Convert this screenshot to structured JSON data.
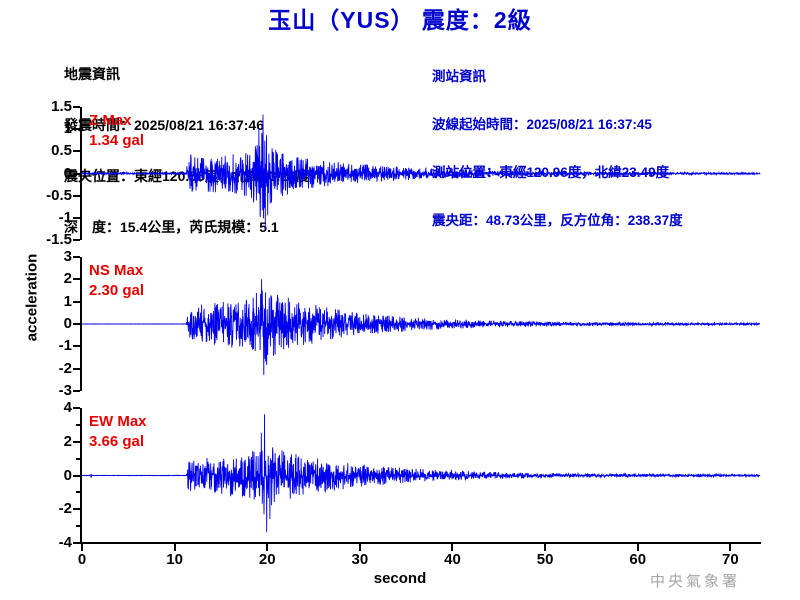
{
  "header": {
    "title": "玉山（YUS） 震度：2級"
  },
  "quake_info": {
    "lines": [
      "地震資訊",
      "發震時間：2025/08/21 16:37:46",
      "震央位置：東經120.55度，北緯23.26度",
      "深　度：15.4公里，芮氏規模：5.1"
    ]
  },
  "station_info": {
    "lines": [
      "測站資訊",
      "波線起始時間：2025/08/21 16:37:45",
      "測站位置：東經120.96度，北緯23.49度",
      "震央距：48.73公里，反方位角：238.37度"
    ]
  },
  "watermark": "中央氣象署",
  "colors": {
    "title_blue": "#0000cc",
    "info_blue": "#0000cc",
    "label_red": "#e80000",
    "trace_blue": "#0000ee",
    "watermark_gray": "#a6a6a6",
    "axis_black": "#000000"
  },
  "chart_data": {
    "type": "line",
    "title": "玉山（YUS） 震度：2級",
    "xlabel": "second",
    "ylabel": "acceleration",
    "x_range": [
      0,
      73.2
    ],
    "x_ticks": [
      0,
      10,
      20,
      30,
      40,
      50,
      60,
      70
    ],
    "grid": false,
    "trace_color": "#0000ee",
    "panels": [
      {
        "id": "Z",
        "label": "Z Max",
        "max_label": "1.34 gal",
        "max_gal": 1.34,
        "ylim": [
          -1.5,
          1.5
        ],
        "yticks": [
          1.5,
          1,
          0.5,
          0,
          -0.5,
          -1,
          -1.5
        ],
        "ytick_labels": [
          "1.5",
          "1",
          "0.5",
          "0",
          "-0.5",
          "-1",
          "-1.5"
        ],
        "yticks_minor": [],
        "p_arrival_s": 11.4,
        "peak_time_s": 19.55,
        "envelope": [
          [
            0,
            0.02
          ],
          [
            1.5,
            0.03
          ],
          [
            3,
            0.02
          ],
          [
            4.5,
            0.03
          ],
          [
            6,
            0.02
          ],
          [
            7.5,
            0.03
          ],
          [
            9,
            0.02
          ],
          [
            10.5,
            0.025
          ],
          [
            11.25,
            0.025
          ],
          [
            11.45,
            0.5
          ],
          [
            12,
            0.42
          ],
          [
            13,
            0.38
          ],
          [
            14,
            0.45
          ],
          [
            15,
            0.4
          ],
          [
            16,
            0.42
          ],
          [
            17,
            0.5
          ],
          [
            18,
            0.55
          ],
          [
            18.8,
            0.75
          ],
          [
            19.3,
            1.05
          ],
          [
            19.7,
            1.15
          ],
          [
            20.2,
            0.8
          ],
          [
            21,
            0.55
          ],
          [
            22,
            0.5
          ],
          [
            23,
            0.42
          ],
          [
            24,
            0.38
          ],
          [
            25,
            0.33
          ],
          [
            26,
            0.3
          ],
          [
            27,
            0.28
          ],
          [
            28,
            0.26
          ],
          [
            30,
            0.22
          ],
          [
            32,
            0.19
          ],
          [
            34,
            0.16
          ],
          [
            36,
            0.14
          ],
          [
            38,
            0.12
          ],
          [
            40,
            0.1
          ],
          [
            43,
            0.08
          ],
          [
            46,
            0.065
          ],
          [
            50,
            0.05
          ],
          [
            55,
            0.04
          ],
          [
            60,
            0.033
          ],
          [
            65,
            0.028
          ],
          [
            70,
            0.024
          ],
          [
            73.2,
            0.022
          ]
        ],
        "peaks": [
          {
            "t": 19.55,
            "v": 1.34
          },
          {
            "t": 19.78,
            "v": -1.28
          },
          {
            "t": 19.1,
            "v": 1.02
          },
          {
            "t": 20.05,
            "v": -0.95
          }
        ]
      },
      {
        "id": "NS",
        "label": "NS Max",
        "max_label": "2.30 gal",
        "max_gal": 2.3,
        "ylim": [
          -3,
          3
        ],
        "yticks": [
          3,
          2,
          1,
          0,
          -1,
          -2,
          -3
        ],
        "ytick_labels": [
          "3",
          "2",
          "1",
          "0",
          "-1",
          "-2",
          "-3"
        ],
        "yticks_minor": [],
        "p_arrival_s": 11.4,
        "peak_time_s": 19.62,
        "envelope": [
          [
            0,
            0.006
          ],
          [
            11.25,
            0.008
          ],
          [
            11.45,
            0.7
          ],
          [
            12,
            0.75
          ],
          [
            13,
            0.9
          ],
          [
            14,
            1.1
          ],
          [
            14.5,
            0.95
          ],
          [
            15,
            1.05
          ],
          [
            16,
            1.15
          ],
          [
            17,
            1.05
          ],
          [
            18,
            1.25
          ],
          [
            18.7,
            1.5
          ],
          [
            19.3,
            1.9
          ],
          [
            19.6,
            2.1
          ],
          [
            20.1,
            1.7
          ],
          [
            21,
            1.35
          ],
          [
            22,
            1.25
          ],
          [
            23,
            1.05
          ],
          [
            24,
            0.95
          ],
          [
            25,
            0.9
          ],
          [
            26,
            0.8
          ],
          [
            27,
            0.7
          ],
          [
            28,
            0.65
          ],
          [
            29,
            0.58
          ],
          [
            30,
            0.52
          ],
          [
            32,
            0.44
          ],
          [
            34,
            0.37
          ],
          [
            36,
            0.31
          ],
          [
            38,
            0.26
          ],
          [
            40,
            0.22
          ],
          [
            43,
            0.17
          ],
          [
            46,
            0.14
          ],
          [
            50,
            0.11
          ],
          [
            55,
            0.085
          ],
          [
            60,
            0.07
          ],
          [
            65,
            0.06
          ],
          [
            70,
            0.052
          ],
          [
            73.2,
            0.048
          ]
        ],
        "peaks": [
          {
            "t": 19.62,
            "v": -2.3
          },
          {
            "t": 19.4,
            "v": 2.02
          },
          {
            "t": 19.95,
            "v": -1.85
          }
        ]
      },
      {
        "id": "EW",
        "label": "EW Max",
        "max_label": "3.66 gal",
        "max_gal": 3.66,
        "ylim": [
          -4,
          4
        ],
        "yticks": [
          4,
          2,
          0,
          -2,
          -4
        ],
        "ytick_labels": [
          "4",
          "2",
          "0",
          "-2",
          "-4"
        ],
        "yticks_minor": [
          3,
          1,
          -1,
          -3
        ],
        "p_arrival_s": 11.4,
        "peak_time_s": 19.7,
        "envelope": [
          [
            0,
            0.012
          ],
          [
            0.85,
            0.012
          ],
          [
            0.95,
            0.13
          ],
          [
            1.1,
            0.012
          ],
          [
            11.25,
            0.015
          ],
          [
            11.45,
            1.0
          ],
          [
            12,
            0.95
          ],
          [
            13,
            1.0
          ],
          [
            14,
            1.1
          ],
          [
            15,
            1.15
          ],
          [
            16,
            1.25
          ],
          [
            17,
            1.2
          ],
          [
            18,
            1.35
          ],
          [
            18.7,
            1.6
          ],
          [
            19.3,
            2.2
          ],
          [
            19.7,
            3.0
          ],
          [
            20.2,
            2.0
          ],
          [
            21,
            1.6
          ],
          [
            22,
            1.5
          ],
          [
            23,
            1.35
          ],
          [
            24,
            1.25
          ],
          [
            25,
            1.1
          ],
          [
            26,
            1.0
          ],
          [
            27,
            0.92
          ],
          [
            28,
            0.85
          ],
          [
            29,
            0.75
          ],
          [
            30,
            0.68
          ],
          [
            32,
            0.58
          ],
          [
            34,
            0.48
          ],
          [
            36,
            0.42
          ],
          [
            38,
            0.35
          ],
          [
            40,
            0.3
          ],
          [
            43,
            0.24
          ],
          [
            46,
            0.19
          ],
          [
            50,
            0.15
          ],
          [
            55,
            0.12
          ],
          [
            60,
            0.1
          ],
          [
            65,
            0.085
          ],
          [
            70,
            0.075
          ],
          [
            73.2,
            0.065
          ]
        ],
        "peaks": [
          {
            "t": 19.7,
            "v": 3.66
          },
          {
            "t": 19.95,
            "v": -3.4
          },
          {
            "t": 19.35,
            "v": 2.55
          },
          {
            "t": 20.3,
            "v": -2.6
          }
        ]
      }
    ]
  }
}
